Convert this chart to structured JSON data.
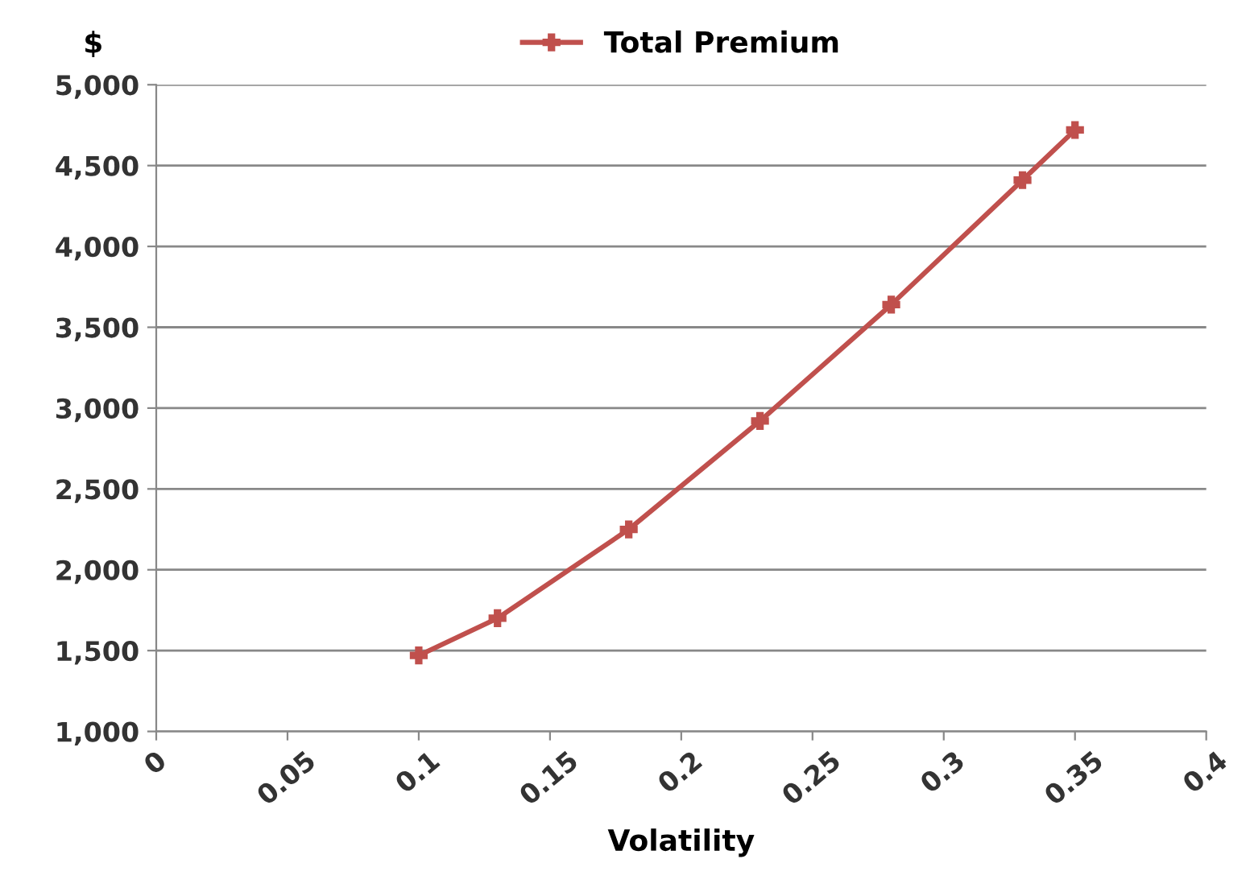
{
  "chart_data": {
    "type": "line",
    "xlabel": "Volatility",
    "ylabel": "$",
    "x": [
      0.1,
      0.13,
      0.18,
      0.23,
      0.28,
      0.33,
      0.35
    ],
    "series": [
      {
        "name": "Total Premium",
        "color": "#c0504d",
        "values": [
          1470,
          1700,
          2250,
          2920,
          3640,
          4410,
          4720
        ]
      }
    ],
    "xlim": [
      0,
      0.4
    ],
    "xticks": [
      0,
      0.05,
      0.1,
      0.15,
      0.2,
      0.25,
      0.3,
      0.35,
      0.4
    ],
    "ylim": [
      1000,
      5000
    ],
    "yticks": [
      {
        "value": 1000,
        "label": "1,000"
      },
      {
        "value": 1500,
        "label": "1,500"
      },
      {
        "value": 2000,
        "label": "2,000"
      },
      {
        "value": 2500,
        "label": "2,500"
      },
      {
        "value": 3000,
        "label": "3,000"
      },
      {
        "value": 3500,
        "label": "3,500"
      },
      {
        "value": 4000,
        "label": "4,000"
      },
      {
        "value": 4500,
        "label": "4,500"
      },
      {
        "value": 5000,
        "label": "5,000"
      }
    ],
    "grid": "y",
    "legend": "top",
    "marker": "cross",
    "line_style": "solid"
  }
}
